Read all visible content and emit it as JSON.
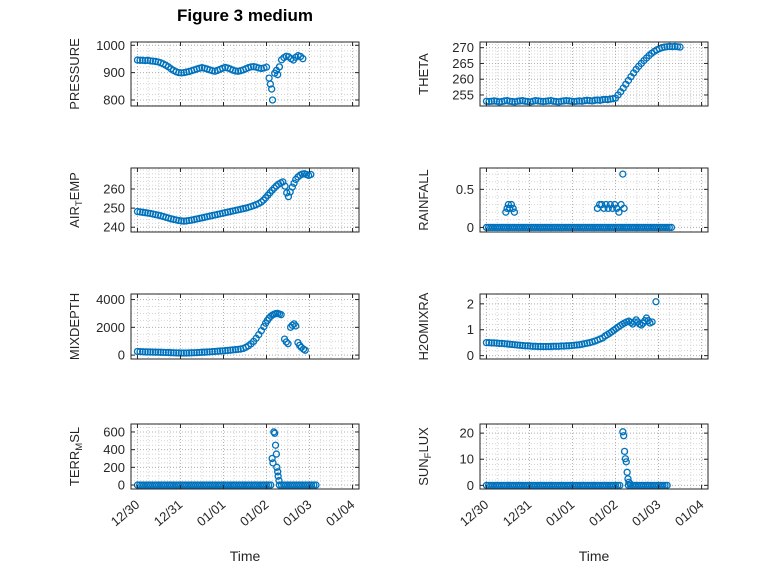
{
  "figure_title": "Figure 3 medium",
  "xlabel": "Time",
  "accent_color": "#0072BD",
  "axis_color": "#262626",
  "grid_major_color": "#b2b2b2",
  "grid_minor_color": "#d4d4d4",
  "x_axis": {
    "lim": [
      -0.15,
      5.15
    ],
    "ticks": [
      0,
      1,
      2,
      3,
      4,
      5
    ],
    "tick_labels": [
      "12/30",
      "12/31",
      "01/01",
      "01/02",
      "01/03",
      "01/04"
    ],
    "minor_step": 0.25
  },
  "chart_data": [
    {
      "type": "scatter",
      "name": "PRESSURE",
      "ylabel": [
        [
          "PRESSURE",
          0
        ]
      ],
      "ylim": [
        778,
        1012
      ],
      "yticks": [
        800,
        900,
        1000
      ],
      "ytick_labels": [
        "800",
        "900",
        "1000"
      ],
      "yminor": 20,
      "series": [
        {
          "kind": "run",
          "x0": 0,
          "dx": 0.06,
          "y": [
            946,
            945,
            945,
            944,
            945,
            943,
            942,
            941,
            939,
            936,
            932,
            927,
            921,
            914,
            908,
            903,
            900,
            899,
            900,
            902,
            904,
            907,
            910,
            913,
            916,
            918,
            916,
            913,
            910,
            907,
            905,
            908,
            912,
            916,
            919,
            917,
            913,
            909,
            906,
            905,
            907,
            910,
            914,
            918,
            921,
            922,
            920,
            917,
            915,
            917,
            920
          ]
        },
        {
          "kind": "scatter",
          "points": [
            [
              3.06,
              880
            ],
            [
              3.09,
              858
            ],
            [
              3.12,
              840
            ],
            [
              3.14,
              800
            ],
            [
              3.19,
              898
            ],
            [
              3.23,
              908
            ],
            [
              3.26,
              893
            ],
            [
              3.3,
              921
            ]
          ]
        },
        {
          "kind": "run",
          "x0": 3.35,
          "dx": 0.055,
          "y": [
            947,
            955,
            960,
            958,
            951,
            946,
            956,
            962,
            959,
            951
          ]
        }
      ]
    },
    {
      "type": "scatter",
      "name": "THETA",
      "ylabel": [
        [
          "THETA",
          0
        ]
      ],
      "ylim": [
        251.5,
        271.8
      ],
      "yticks": [
        255,
        260,
        265,
        270
      ],
      "ytick_labels": [
        "255",
        "260",
        "265",
        "270"
      ],
      "yminor": 1,
      "series": [
        {
          "kind": "run",
          "x0": 0,
          "dx": 0.06,
          "y": [
            253.0,
            252.9,
            253.0,
            253.1,
            253.0,
            252.8,
            252.9,
            253.1,
            253.2,
            253.0,
            252.9,
            252.8,
            253.0,
            253.1,
            253.2,
            253.0,
            252.9,
            252.8,
            253.0,
            253.2,
            253.1,
            253.0,
            252.9,
            253.0,
            253.1,
            253.2,
            253.0,
            252.9,
            252.8,
            253.0,
            253.1,
            253.2,
            253.1,
            253.0,
            252.9,
            253.0,
            253.1,
            253.0,
            253.2,
            253.3,
            253.2,
            253.1,
            253.3,
            253.4,
            253.3,
            253.5,
            253.6,
            253.5,
            253.7,
            253.8,
            254.0
          ]
        },
        {
          "kind": "run",
          "x0": 3.06,
          "dx": 0.06,
          "y": [
            255.0,
            256.0,
            257.2,
            258.4,
            259.6,
            260.8,
            262.0,
            263.1,
            264.1,
            265.0,
            265.9,
            266.7,
            267.5,
            268.2,
            268.8,
            269.3,
            269.7,
            270.0,
            270.2,
            270.3,
            270.4,
            270.3,
            270.4,
            270.3,
            270.2
          ]
        }
      ]
    },
    {
      "type": "scatter",
      "name": "AIR_TEMP",
      "ylabel": [
        [
          "AIR",
          0
        ],
        [
          "T",
          1
        ],
        [
          "EMP",
          0
        ]
      ],
      "ylim": [
        237.5,
        271
      ],
      "yticks": [
        240,
        250,
        260
      ],
      "ytick_labels": [
        "240",
        "250",
        "260"
      ],
      "yminor": 2,
      "series": [
        {
          "kind": "run",
          "x0": 0,
          "dx": 0.06,
          "y": [
            248.2,
            248.0,
            247.8,
            247.6,
            247.4,
            247.2,
            246.9,
            246.6,
            246.3,
            246.0,
            245.6,
            245.2,
            244.8,
            244.4,
            244.1,
            243.8,
            243.5,
            243.3,
            243.2,
            243.3,
            243.5,
            243.7,
            244.0,
            244.3,
            244.6,
            244.9,
            245.2,
            245.5,
            245.8,
            246.1,
            246.4,
            246.7,
            247.0,
            247.3,
            247.6,
            247.9,
            248.2,
            248.5,
            248.8,
            249.1,
            249.4,
            249.7,
            250.0,
            250.4,
            250.8,
            251.3,
            251.8,
            252.4
          ]
        },
        {
          "kind": "run",
          "x0": 2.88,
          "dx": 0.05,
          "y": [
            253.2,
            254.2,
            255.4,
            256.7,
            258.0,
            259.3,
            260.5,
            261.6,
            262.5,
            263.2,
            263.7
          ]
        },
        {
          "kind": "scatter",
          "points": [
            [
              3.43,
              261.5
            ],
            [
              3.47,
              258.0
            ],
            [
              3.51,
              256.0
            ],
            [
              3.55,
              258.5
            ],
            [
              3.6,
              261.0
            ],
            [
              3.64,
              263.0
            ]
          ]
        },
        {
          "kind": "run",
          "x0": 3.68,
          "dx": 0.05,
          "y": [
            265.0,
            266.3,
            267.2,
            267.8,
            268.0,
            267.6,
            267.1,
            267.6
          ]
        }
      ]
    },
    {
      "type": "scatter",
      "name": "RAINFALL",
      "ylabel": [
        [
          "RAINFALL",
          0
        ]
      ],
      "ylim": [
        -0.06,
        0.78
      ],
      "yticks": [
        0,
        0.5
      ],
      "ytick_labels": [
        "0",
        "0.5"
      ],
      "yminor": 0.1,
      "series": [
        {
          "kind": "const",
          "x0": 0,
          "dx": 0.05,
          "n": 64,
          "y": 0
        },
        {
          "kind": "const",
          "x0": 3.2,
          "dx": 0.05,
          "n": 23,
          "y": 0
        },
        {
          "kind": "scatter",
          "points": [
            [
              0.45,
              0.2
            ],
            [
              0.48,
              0.25
            ],
            [
              0.51,
              0.3
            ],
            [
              0.54,
              0.25
            ],
            [
              0.58,
              0.3
            ],
            [
              0.62,
              0.25
            ],
            [
              0.65,
              0.2
            ]
          ]
        },
        {
          "kind": "scatter",
          "points": [
            [
              2.58,
              0.25
            ],
            [
              2.63,
              0.3
            ],
            [
              2.68,
              0.3
            ],
            [
              2.73,
              0.25
            ],
            [
              2.78,
              0.3
            ],
            [
              2.83,
              0.25
            ],
            [
              2.88,
              0.3
            ],
            [
              2.93,
              0.25
            ],
            [
              2.98,
              0.3
            ],
            [
              3.03,
              0.25
            ],
            [
              3.08,
              0.2
            ]
          ]
        },
        {
          "kind": "scatter",
          "points": [
            [
              3.13,
              0.3
            ],
            [
              3.17,
              0.7
            ],
            [
              3.2,
              0.25
            ]
          ]
        }
      ]
    },
    {
      "type": "scatter",
      "name": "MIXDEPTH",
      "ylabel": [
        [
          "MIXDEPTH",
          0
        ]
      ],
      "ylim": [
        -280,
        4400
      ],
      "yticks": [
        0,
        2000,
        4000
      ],
      "ytick_labels": [
        "0",
        "2000",
        "4000"
      ],
      "yminor": 500,
      "series": [
        {
          "kind": "run",
          "x0": 0,
          "dx": 0.06,
          "y": [
            260,
            250,
            240,
            230,
            225,
            220,
            215,
            210,
            205,
            200,
            195,
            190,
            182,
            175,
            168,
            162,
            155,
            150,
            148,
            152,
            158,
            165,
            172,
            180,
            190,
            200,
            210,
            222,
            235,
            248,
            262,
            276,
            290,
            305,
            320,
            338,
            356,
            375,
            395,
            415,
            435
          ]
        },
        {
          "kind": "run",
          "x0": 2.46,
          "dx": 0.06,
          "y": [
            480,
            560,
            670,
            810,
            990,
            1210,
            1470,
            1760,
            2050
          ]
        },
        {
          "kind": "run",
          "x0": 2.98,
          "dx": 0.04,
          "y": [
            2300,
            2500,
            2670,
            2800,
            2890,
            2950,
            2990,
            3000,
            2960,
            2910
          ]
        },
        {
          "kind": "scatter",
          "points": [
            [
              3.42,
              1150
            ],
            [
              3.46,
              950
            ],
            [
              3.5,
              820
            ],
            [
              3.56,
              2000
            ],
            [
              3.6,
              2150
            ],
            [
              3.64,
              2250
            ],
            [
              3.68,
              2100
            ],
            [
              3.73,
              900
            ],
            [
              3.77,
              700
            ],
            [
              3.81,
              550
            ],
            [
              3.86,
              430
            ],
            [
              3.9,
              350
            ]
          ]
        }
      ]
    },
    {
      "type": "scatter",
      "name": "H2OMIXRA",
      "ylabel": [
        [
          "H2OMIXRA",
          0
        ]
      ],
      "ylim": [
        -0.13,
        2.38
      ],
      "yticks": [
        0,
        1,
        2
      ],
      "ytick_labels": [
        "0",
        "1",
        "2"
      ],
      "yminor": 0.2,
      "series": [
        {
          "kind": "run",
          "x0": 0,
          "dx": 0.06,
          "y": [
            0.5,
            0.5,
            0.49,
            0.49,
            0.48,
            0.47,
            0.47,
            0.46,
            0.45,
            0.44,
            0.43,
            0.42,
            0.41,
            0.4,
            0.39,
            0.38,
            0.38,
            0.37,
            0.36,
            0.36,
            0.35,
            0.35,
            0.35,
            0.35,
            0.35,
            0.35,
            0.36,
            0.36,
            0.36,
            0.37,
            0.37,
            0.38,
            0.38,
            0.39,
            0.4,
            0.41,
            0.42,
            0.44,
            0.46,
            0.48,
            0.5,
            0.53,
            0.56,
            0.6,
            0.64,
            0.68
          ]
        },
        {
          "kind": "run",
          "x0": 2.76,
          "dx": 0.05,
          "y": [
            0.76,
            0.81,
            0.86,
            0.92,
            0.98,
            1.04,
            1.1,
            1.16,
            1.21,
            1.26,
            1.3,
            1.33
          ]
        },
        {
          "kind": "scatter",
          "points": [
            [
              3.36,
              1.28
            ],
            [
              3.4,
              1.22
            ],
            [
              3.44,
              1.3
            ],
            [
              3.48,
              1.38
            ],
            [
              3.52,
              1.3
            ],
            [
              3.56,
              1.22
            ],
            [
              3.6,
              1.18
            ],
            [
              3.64,
              1.25
            ],
            [
              3.68,
              1.35
            ],
            [
              3.72,
              1.45
            ],
            [
              3.76,
              1.35
            ],
            [
              3.8,
              1.26
            ],
            [
              3.85,
              1.3
            ],
            [
              3.94,
              2.08
            ]
          ]
        }
      ]
    },
    {
      "type": "scatter",
      "name": "TERR_MSL",
      "ylabel": [
        [
          "TERR",
          0
        ],
        [
          "M",
          1
        ],
        [
          "SL",
          0
        ]
      ],
      "ylim": [
        -45,
        690
      ],
      "yticks": [
        0,
        200,
        400,
        600
      ],
      "ytick_labels": [
        "0",
        "200",
        "400",
        "600"
      ],
      "yminor": 50,
      "series": [
        {
          "kind": "const",
          "x0": 0,
          "dx": 0.05,
          "n": 63,
          "y": 0
        },
        {
          "kind": "const",
          "x0": 3.3,
          "dx": 0.05,
          "n": 18,
          "y": 0
        },
        {
          "kind": "scatter",
          "points": [
            [
              3.13,
              300
            ],
            [
              3.15,
              250
            ],
            [
              3.17,
              600
            ],
            [
              3.19,
              585
            ],
            [
              3.21,
              450
            ],
            [
              3.23,
              350
            ],
            [
              3.24,
              200
            ],
            [
              3.26,
              150
            ],
            [
              3.27,
              100
            ],
            [
              3.29,
              50
            ]
          ]
        }
      ]
    },
    {
      "type": "scatter",
      "name": "SUN_FLUX",
      "ylabel": [
        [
          "SUN",
          0
        ],
        [
          "F",
          1
        ],
        [
          "LUX",
          0
        ]
      ],
      "ylim": [
        -1.4,
        23.5
      ],
      "yticks": [
        0,
        10,
        20
      ],
      "ytick_labels": [
        "0",
        "10",
        "20"
      ],
      "yminor": 2,
      "series": [
        {
          "kind": "const",
          "x0": 0,
          "dx": 0.05,
          "n": 63,
          "y": 0
        },
        {
          "kind": "const",
          "x0": 3.3,
          "dx": 0.05,
          "n": 19,
          "y": 0
        },
        {
          "kind": "scatter",
          "points": [
            [
              3.17,
              20.5
            ],
            [
              3.19,
              19.0
            ],
            [
              3.21,
              13.0
            ],
            [
              3.23,
              10.2
            ],
            [
              3.25,
              9.0
            ],
            [
              3.27,
              5.0
            ],
            [
              3.29,
              2.5
            ],
            [
              3.31,
              1.2
            ],
            [
              3.34,
              0.6
            ]
          ]
        }
      ]
    }
  ]
}
